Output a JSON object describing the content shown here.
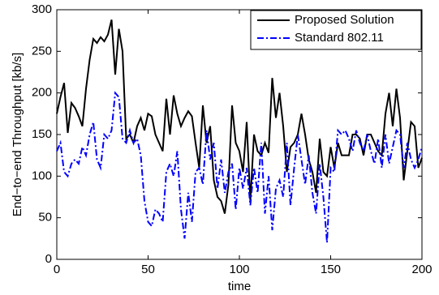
{
  "chart_data": {
    "type": "line",
    "xlabel": "time",
    "ylabel": "End−to−end Throughput [kb/s]",
    "x": [
      0,
      2,
      4,
      6,
      8,
      10,
      12,
      14,
      16,
      18,
      20,
      22,
      24,
      26,
      28,
      30,
      32,
      34,
      36,
      38,
      40,
      42,
      44,
      46,
      48,
      50,
      52,
      54,
      56,
      58,
      60,
      62,
      64,
      66,
      68,
      70,
      72,
      74,
      76,
      78,
      80,
      82,
      84,
      86,
      88,
      90,
      92,
      94,
      96,
      98,
      100,
      102,
      104,
      106,
      108,
      110,
      112,
      114,
      116,
      118,
      120,
      122,
      124,
      126,
      128,
      130,
      132,
      134,
      136,
      138,
      140,
      142,
      144,
      146,
      148,
      150,
      152,
      154,
      156,
      158,
      160,
      162,
      164,
      166,
      168,
      170,
      172,
      174,
      176,
      178,
      180,
      182,
      184,
      186,
      188,
      190,
      192,
      194,
      196,
      198,
      200
    ],
    "series": [
      {
        "name": "Proposed Solution",
        "color": "#000000",
        "dash": "solid",
        "values": [
          175,
          195,
          212,
          152,
          188,
          182,
          172,
          160,
          205,
          240,
          265,
          260,
          267,
          262,
          270,
          288,
          222,
          277,
          250,
          145,
          150,
          140,
          160,
          170,
          155,
          175,
          172,
          150,
          140,
          130,
          193,
          150,
          197,
          175,
          160,
          170,
          178,
          172,
          140,
          110,
          185,
          140,
          160,
          95,
          75,
          70,
          55,
          90,
          185,
          140,
          130,
          105,
          165,
          70,
          150,
          130,
          125,
          140,
          128,
          218,
          170,
          200,
          160,
          105,
          135,
          140,
          150,
          175,
          150,
          120,
          105,
          80,
          145,
          105,
          100,
          135,
          110,
          140,
          125,
          125,
          125,
          150,
          150,
          145,
          125,
          150,
          150,
          140,
          130,
          125,
          175,
          200,
          160,
          205,
          170,
          95,
          130,
          165,
          160,
          110,
          122
        ]
      },
      {
        "name": "Standard 802.11",
        "color": "#0000ff",
        "dash": "dashdot",
        "values": [
          130,
          140,
          105,
          100,
          115,
          120,
          115,
          135,
          125,
          150,
          165,
          120,
          110,
          150,
          145,
          155,
          200,
          195,
          145,
          140,
          155,
          140,
          145,
          125,
          70,
          45,
          40,
          60,
          55,
          45,
          105,
          115,
          100,
          130,
          60,
          25,
          80,
          45,
          105,
          110,
          90,
          155,
          120,
          140,
          85,
          120,
          80,
          105,
          115,
          60,
          110,
          85,
          110,
          65,
          110,
          80,
          140,
          55,
          100,
          35,
          85,
          95,
          75,
          140,
          65,
          110,
          150,
          120,
          90,
          125,
          80,
          55,
          115,
          75,
          20,
          110,
          105,
          155,
          150,
          155,
          145,
          130,
          155,
          140,
          130,
          150,
          130,
          115,
          145,
          110,
          150,
          115,
          135,
          155,
          150,
          110,
          140,
          120,
          110,
          120,
          135
        ]
      }
    ],
    "xlim": [
      0,
      200
    ],
    "ylim": [
      0,
      300
    ],
    "xticks": [
      0,
      50,
      100,
      150,
      200
    ],
    "yticks": [
      0,
      50,
      100,
      150,
      200,
      250,
      300
    ],
    "legend": "upper right"
  }
}
